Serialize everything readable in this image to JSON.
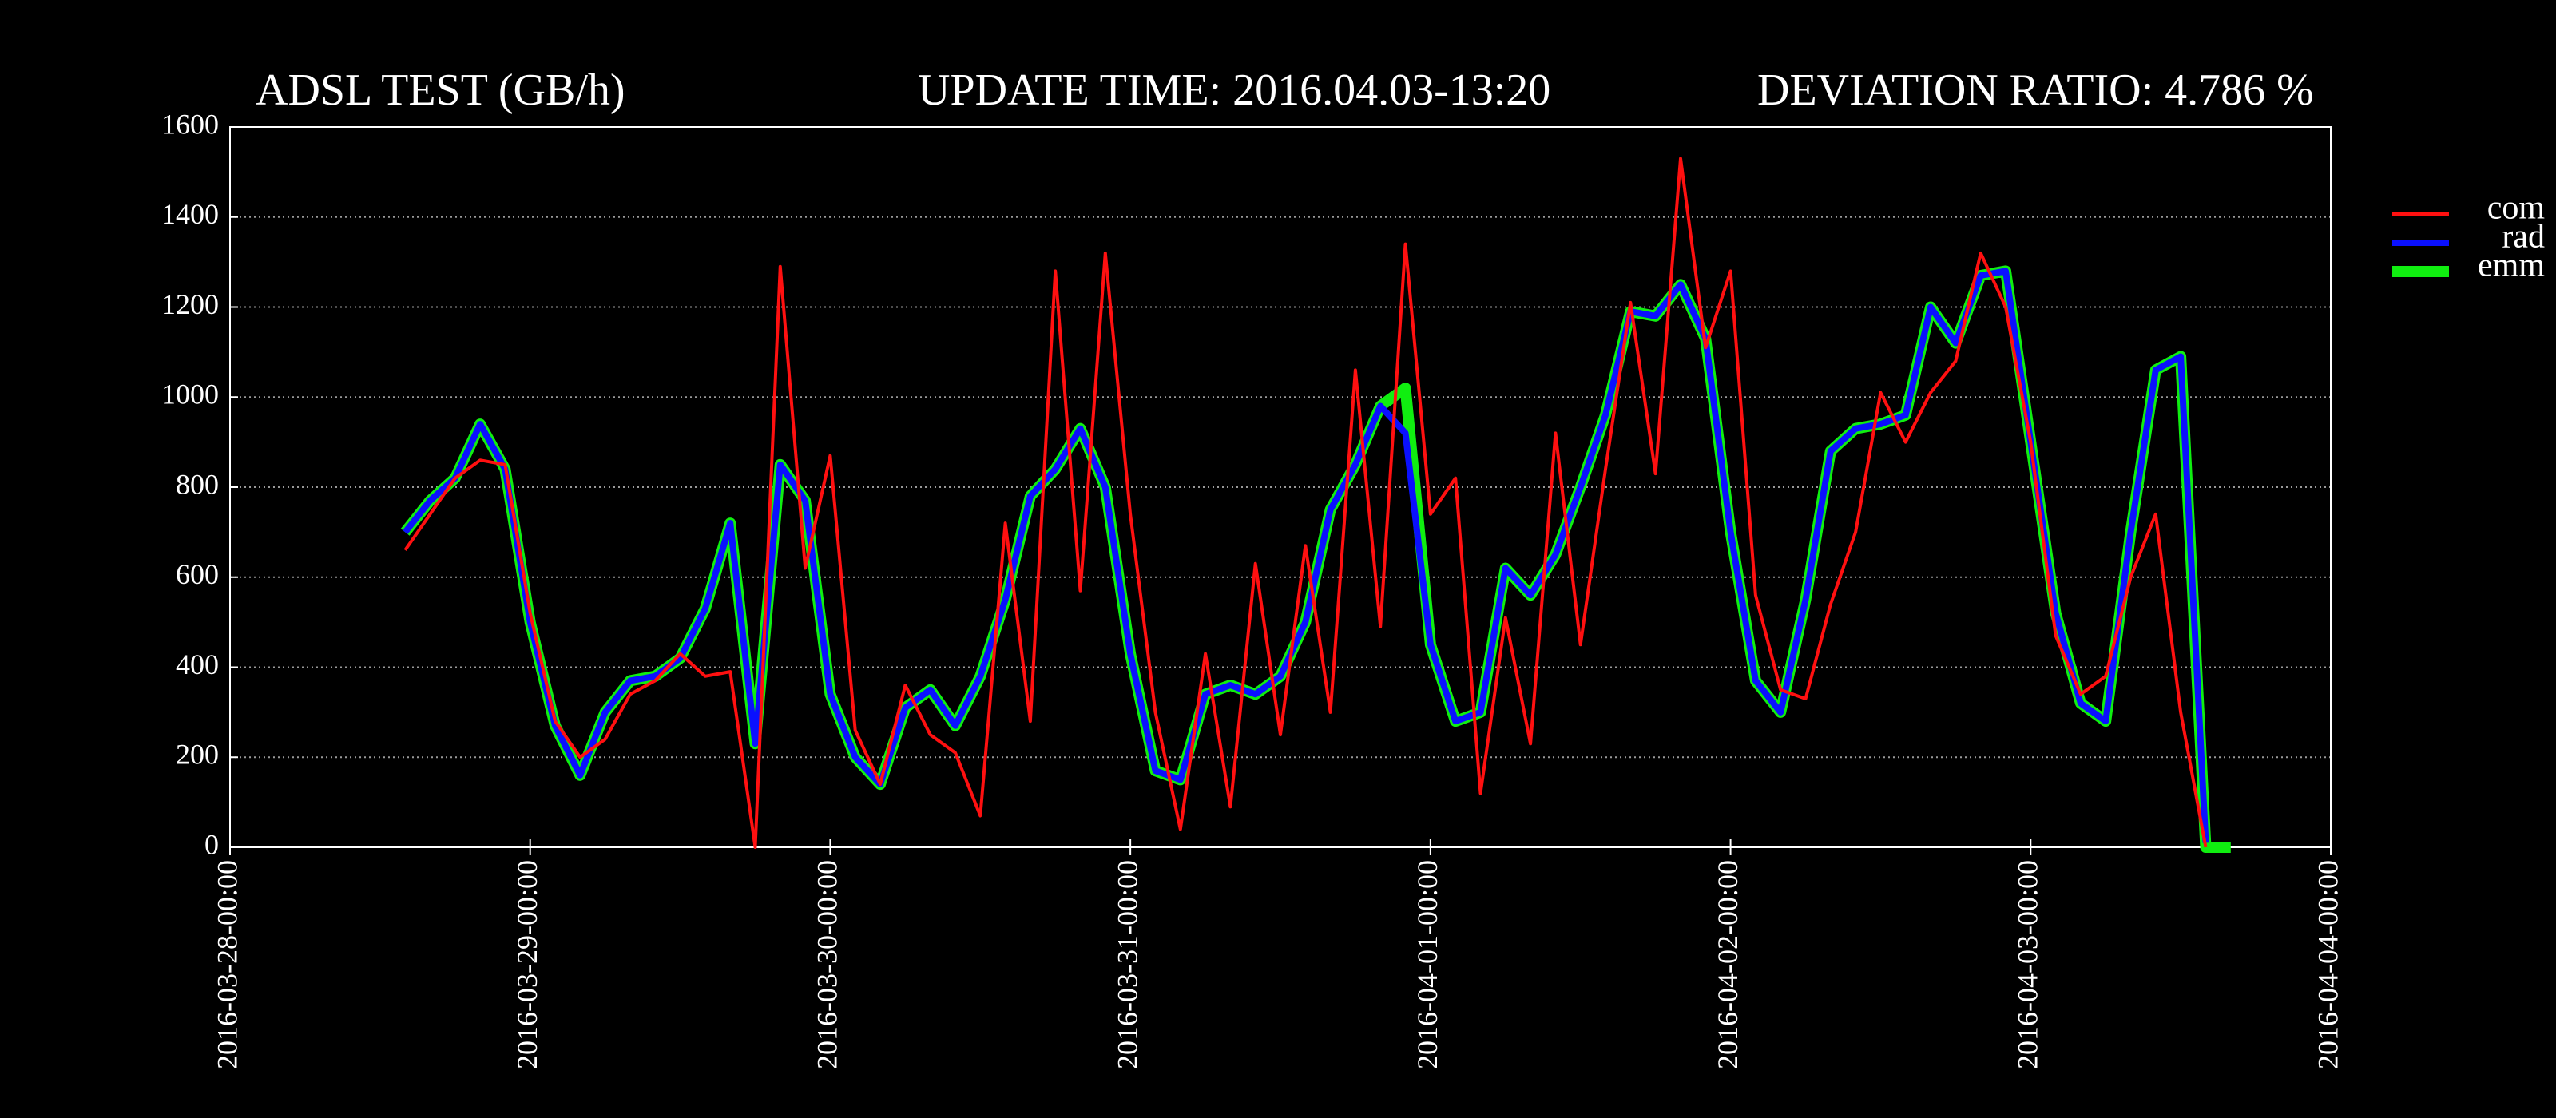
{
  "chart_data": {
    "type": "line",
    "title": "ADSL TEST (GB/h)",
    "update_time": "UPDATE TIME: 2016.04.03-13:20",
    "deviation_ratio": "DEVIATION RATIO:  4.786 %",
    "x": [
      "2016-03-28-14:00",
      "2016-03-28-16:00",
      "2016-03-28-18:00",
      "2016-03-28-20:00",
      "2016-03-28-22:00",
      "2016-03-29-00:00",
      "2016-03-29-02:00",
      "2016-03-29-04:00",
      "2016-03-29-06:00",
      "2016-03-29-08:00",
      "2016-03-29-10:00",
      "2016-03-29-12:00",
      "2016-03-29-14:00",
      "2016-03-29-16:00",
      "2016-03-29-18:00",
      "2016-03-29-20:00",
      "2016-03-29-22:00",
      "2016-03-30-00:00",
      "2016-03-30-02:00",
      "2016-03-30-04:00",
      "2016-03-30-06:00",
      "2016-03-30-08:00",
      "2016-03-30-10:00",
      "2016-03-30-12:00",
      "2016-03-30-14:00",
      "2016-03-30-16:00",
      "2016-03-30-18:00",
      "2016-03-30-20:00",
      "2016-03-30-22:00",
      "2016-03-31-00:00",
      "2016-03-31-02:00",
      "2016-03-31-04:00",
      "2016-03-31-06:00",
      "2016-03-31-08:00",
      "2016-03-31-10:00",
      "2016-03-31-12:00",
      "2016-03-31-14:00",
      "2016-03-31-16:00",
      "2016-03-31-18:00",
      "2016-03-31-20:00",
      "2016-03-31-22:00",
      "2016-04-01-00:00",
      "2016-04-01-02:00",
      "2016-04-01-04:00",
      "2016-04-01-06:00",
      "2016-04-01-08:00",
      "2016-04-01-10:00",
      "2016-04-01-12:00",
      "2016-04-01-14:00",
      "2016-04-01-16:00",
      "2016-04-01-18:00",
      "2016-04-01-20:00",
      "2016-04-01-22:00",
      "2016-04-02-00:00",
      "2016-04-02-02:00",
      "2016-04-02-04:00",
      "2016-04-02-06:00",
      "2016-04-02-08:00",
      "2016-04-02-10:00",
      "2016-04-02-12:00",
      "2016-04-02-14:00",
      "2016-04-02-16:00",
      "2016-04-02-18:00",
      "2016-04-02-20:00",
      "2016-04-02-22:00",
      "2016-04-03-00:00",
      "2016-04-03-02:00",
      "2016-04-03-04:00",
      "2016-04-03-06:00",
      "2016-04-03-08:00",
      "2016-04-03-10:00",
      "2016-04-03-12:00",
      "2016-04-03-14:00",
      "2016-04-03-16:00"
    ],
    "series": [
      {
        "name": "com",
        "color": "#ff1010",
        "linewidth": 4,
        "values": [
          660,
          740,
          820,
          860,
          850,
          520,
          280,
          200,
          240,
          340,
          370,
          430,
          380,
          390,
          0,
          1290,
          620,
          870,
          260,
          140,
          360,
          250,
          210,
          70,
          720,
          280,
          1280,
          570,
          1320,
          740,
          300,
          40,
          430,
          90,
          630,
          250,
          670,
          300,
          1060,
          490,
          1340,
          740,
          820,
          120,
          510,
          230,
          920,
          450,
          840,
          1210,
          830,
          1530,
          1110,
          1280,
          560,
          350,
          330,
          540,
          700,
          1010,
          900,
          1010,
          1080,
          1320,
          1200,
          900,
          470,
          340,
          380,
          600,
          740,
          300,
          0,
          null
        ]
      },
      {
        "name": "rad",
        "color": "#0a10ff",
        "linewidth": 8,
        "values": [
          700,
          770,
          820,
          940,
          840,
          500,
          270,
          160,
          300,
          370,
          380,
          420,
          530,
          720,
          230,
          850,
          770,
          340,
          200,
          140,
          310,
          350,
          270,
          380,
          550,
          780,
          840,
          930,
          800,
          430,
          170,
          150,
          340,
          360,
          340,
          380,
          500,
          750,
          850,
          980,
          920,
          450,
          280,
          300,
          620,
          560,
          650,
          800,
          960,
          1190,
          1180,
          1250,
          1130,
          700,
          370,
          300,
          550,
          880,
          930,
          940,
          960,
          1200,
          1120,
          1270,
          1280,
          900,
          520,
          320,
          280,
          700,
          1060,
          1090,
          10,
          null
        ]
      },
      {
        "name": "emm",
        "color": "#10ee10",
        "linewidth": 14,
        "values": [
          700,
          770,
          820,
          940,
          840,
          500,
          270,
          160,
          300,
          370,
          380,
          420,
          530,
          720,
          230,
          850,
          770,
          340,
          200,
          140,
          310,
          350,
          270,
          380,
          550,
          780,
          840,
          930,
          800,
          430,
          170,
          150,
          340,
          360,
          340,
          380,
          500,
          750,
          850,
          980,
          1020,
          450,
          280,
          300,
          620,
          560,
          650,
          800,
          960,
          1190,
          1180,
          1250,
          1130,
          700,
          370,
          300,
          550,
          880,
          930,
          940,
          960,
          1200,
          1120,
          1270,
          1280,
          900,
          520,
          320,
          280,
          700,
          1060,
          1090,
          0,
          0
        ]
      }
    ],
    "xlim": [
      "2016-03-28-00:00",
      "2016-04-04-00:00"
    ],
    "xticks": [
      "2016-03-28-00:00",
      "2016-03-29-00:00",
      "2016-03-30-00:00",
      "2016-03-31-00:00",
      "2016-04-01-00:00",
      "2016-04-02-00:00",
      "2016-04-03-00:00",
      "2016-04-04-00:00"
    ],
    "ylim": [
      0,
      1600
    ],
    "yticks": [
      0,
      200,
      400,
      600,
      800,
      1000,
      1200,
      1400,
      1600
    ],
    "grid": true,
    "legend": "right"
  }
}
